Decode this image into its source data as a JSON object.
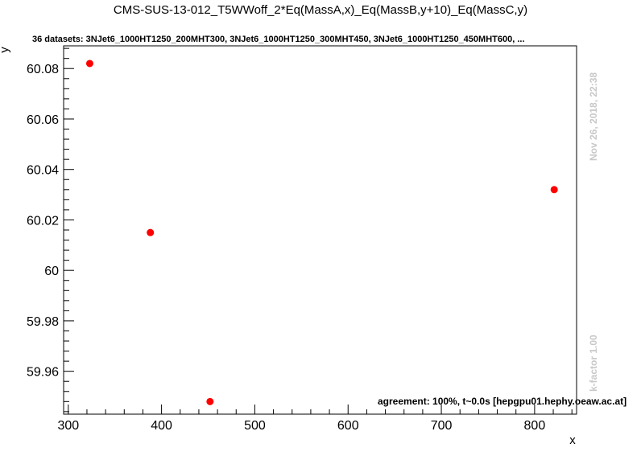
{
  "chart_data": {
    "type": "scatter",
    "title": "CMS-SUS-13-012_T5WWoff_2*Eq(MassA,x)_Eq(MassB,y+10)_Eq(MassC,y)",
    "subtitle": "36 datasets: 3NJet6_1000HT1250_200MHT300, 3NJet6_1000HT1250_300MHT450, 3NJet6_1000HT1250_450MHT600,  ...",
    "xlabel": "x",
    "ylabel": "y",
    "xlim": [
      295,
      845
    ],
    "ylim": [
      59.943,
      60.089
    ],
    "xticks": [
      300,
      400,
      500,
      600,
      700,
      800
    ],
    "yticks": [
      59.96,
      59.98,
      60,
      60.02,
      60.04,
      60.06,
      60.08
    ],
    "xtick_labels": [
      "300",
      "400",
      "500",
      "600",
      "700",
      "800"
    ],
    "ytick_labels": [
      "59.96",
      "59.98",
      "60",
      "60.02",
      "60.04",
      "60.06",
      "60.08"
    ],
    "points": [
      {
        "x": 323,
        "y": 60.082
      },
      {
        "x": 388,
        "y": 60.015
      },
      {
        "x": 452,
        "y": 59.948
      },
      {
        "x": 821,
        "y": 60.032
      }
    ],
    "marker_color": "#ff0000",
    "grid": false
  },
  "annotations": {
    "date": "Nov 26, 2018, 22:38",
    "kfactor": "k-factor 1.00",
    "agreement": "agreement: 100%, t~0.0s [hepgpu01.hephy.oeaw.ac.at]"
  }
}
